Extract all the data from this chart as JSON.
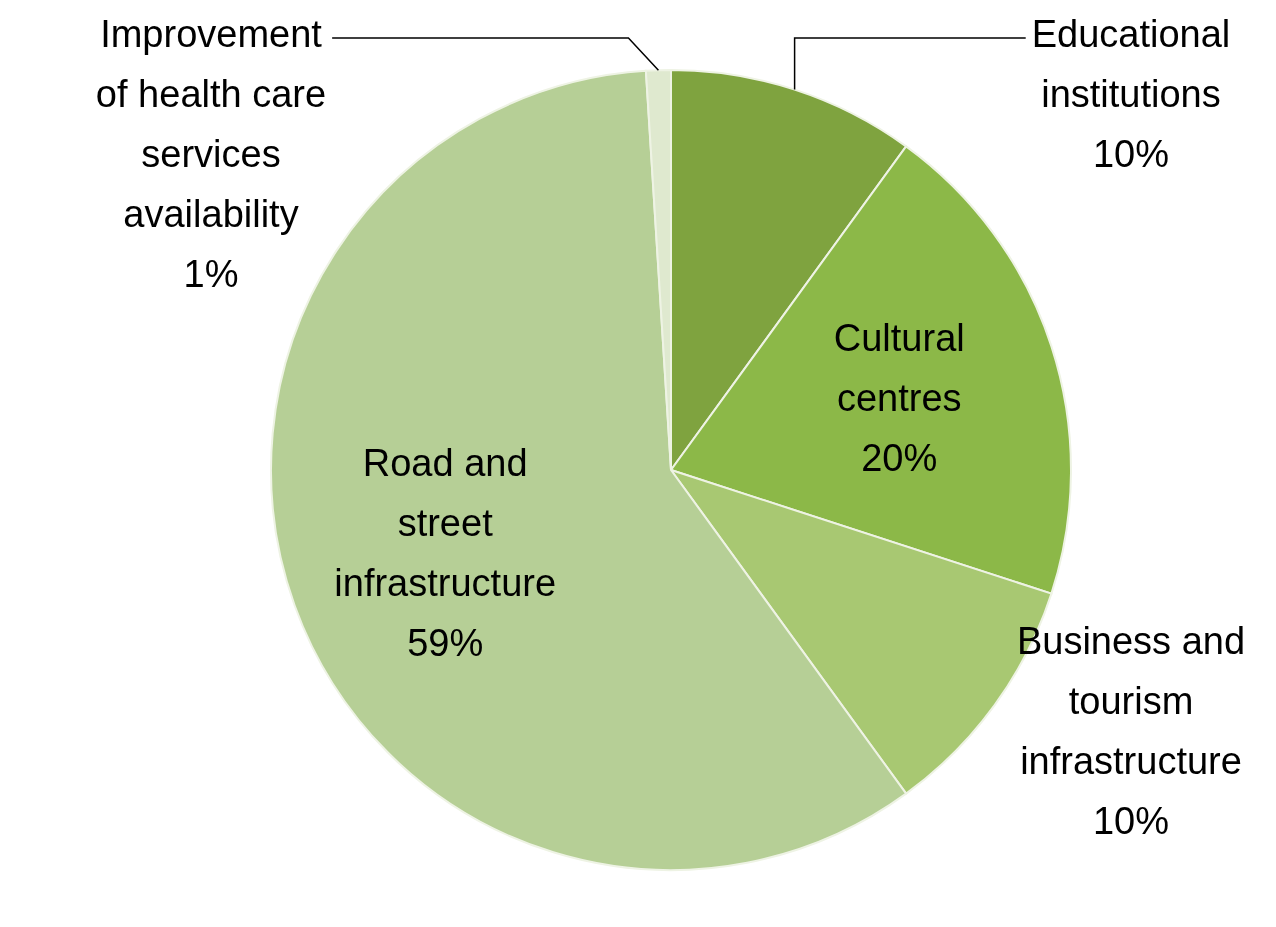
{
  "chart_data": {
    "type": "pie",
    "categories": [
      "Educational institutions",
      "Cultural centres",
      "Business and tourism infrastructure",
      "Road and street infrastructure",
      "Improvement of health care services availability"
    ],
    "values": [
      10,
      20,
      10,
      59,
      1
    ],
    "colors": [
      "#7fa33f",
      "#8cb848",
      "#a8c872",
      "#b6cf96",
      "#dfe9cf"
    ],
    "value_labels": [
      "10%",
      "20%",
      "10%",
      "59%",
      "1%"
    ]
  }
}
